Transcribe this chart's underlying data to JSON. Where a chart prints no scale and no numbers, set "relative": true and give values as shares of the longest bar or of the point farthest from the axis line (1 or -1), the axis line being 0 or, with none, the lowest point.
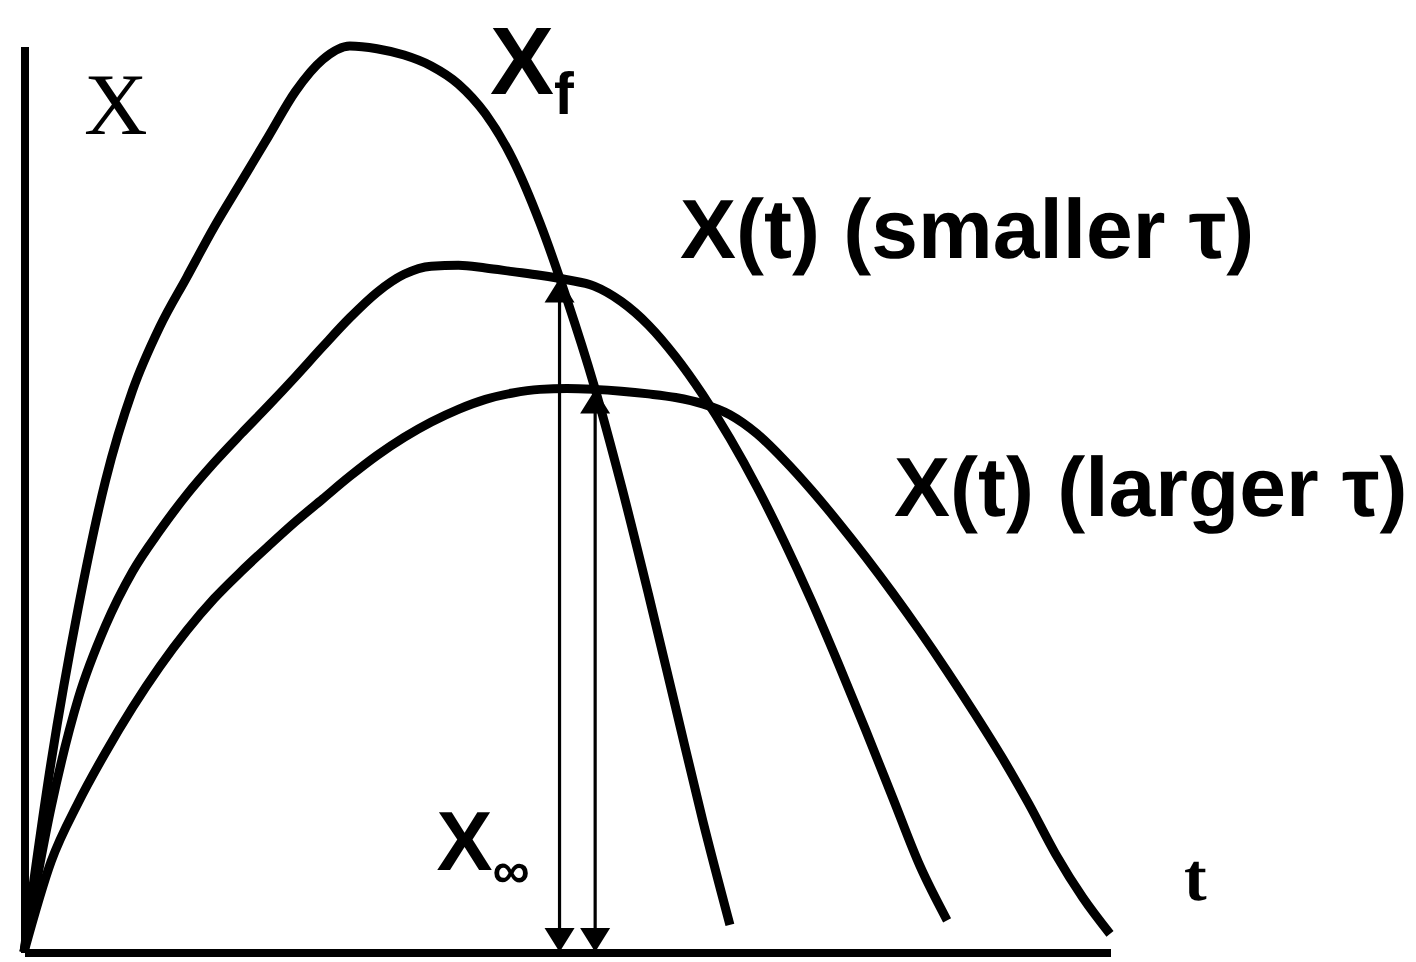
{
  "chart_data": {
    "type": "line",
    "relative": true,
    "xlabel": "t",
    "ylabel": "X",
    "categories": [
      null,
      null,
      null,
      null,
      null,
      null,
      null,
      null,
      null,
      null,
      null,
      null,
      null,
      null,
      null,
      null,
      null,
      null,
      null,
      null,
      null,
      null,
      null,
      null,
      null,
      null,
      null,
      null,
      null,
      null,
      null,
      null,
      null,
      null,
      null,
      null,
      null,
      null,
      null,
      null,
      null
    ],
    "series": [
      {
        "name": "X$_{f}$",
        "color": "#000000",
        "values": [
          0,
          0.21,
          0.38,
          0.52,
          0.62,
          0.69,
          0.745,
          0.8,
          0.85,
          0.9,
          0.95,
          0.985,
          1,
          0.997,
          0.99,
          0.978,
          0.958,
          0.925,
          0.875,
          0.805,
          0.72,
          0.625,
          0.515,
          0.395,
          0.27,
          0.145,
          0.03,
          null,
          null,
          null,
          null,
          null,
          null,
          null,
          null,
          null,
          null,
          null,
          null,
          null,
          null
        ]
      },
      {
        "name": "X(t) (smaller τ)",
        "color": "#000000",
        "values": [
          0,
          0.16,
          0.28,
          0.36,
          0.42,
          0.465,
          0.505,
          0.54,
          0.572,
          0.603,
          0.635,
          0.668,
          0.7,
          0.728,
          0.748,
          0.757,
          0.758,
          0.755,
          0.751,
          0.747,
          0.742,
          0.735,
          0.718,
          0.692,
          0.657,
          0.615,
          0.567,
          0.513,
          0.453,
          0.388,
          0.318,
          0.245,
          0.17,
          0.095,
          0.035,
          null,
          null,
          null,
          null,
          null,
          null
        ]
      },
      {
        "name": "X(t) (larger τ)",
        "color": "#000000",
        "values": [
          0,
          0.1,
          0.165,
          0.22,
          0.27,
          0.315,
          0.355,
          0.39,
          0.42,
          0.448,
          0.475,
          0.5,
          0.525,
          0.548,
          0.568,
          0.585,
          0.599,
          0.61,
          0.617,
          0.621,
          0.622,
          0.621,
          0.619,
          0.616,
          0.612,
          0.605,
          0.593,
          0.572,
          0.543,
          0.51,
          0.474,
          0.436,
          0.396,
          0.354,
          0.31,
          0.264,
          0.216,
          0.164,
          0.108,
          0.06,
          0.02
        ]
      }
    ],
    "annotations": [
      "X$_{∞}$"
    ]
  }
}
